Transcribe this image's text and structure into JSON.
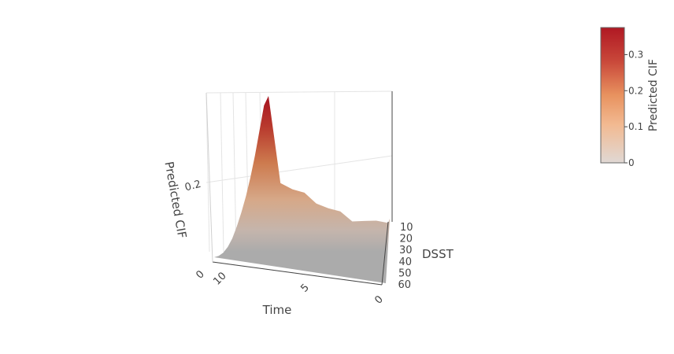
{
  "chart_data": {
    "type": "surface",
    "title": "",
    "axes": {
      "x": {
        "label": "Time",
        "ticks": [
          0,
          5,
          10
        ],
        "range": [
          0,
          12
        ]
      },
      "y": {
        "label": "DSST",
        "ticks": [
          10,
          20,
          30,
          40,
          50,
          60
        ],
        "range": [
          8,
          62
        ]
      },
      "z": {
        "label": "Predicted CIF",
        "ticks": [
          0.2
        ],
        "range": [
          0,
          0.38
        ]
      }
    },
    "surface_edges": {
      "cif_at_dsst_10": [
        {
          "time": 0,
          "cif": 0.0
        },
        {
          "time": 1,
          "cif": 0.004
        },
        {
          "time": 2,
          "cif": 0.012
        },
        {
          "time": 3,
          "cif": 0.026
        },
        {
          "time": 4,
          "cif": 0.046
        },
        {
          "time": 5,
          "cif": 0.074
        },
        {
          "time": 6,
          "cif": 0.106
        },
        {
          "time": 7,
          "cif": 0.143
        },
        {
          "time": 8,
          "cif": 0.186
        },
        {
          "time": 9,
          "cif": 0.236
        },
        {
          "time": 10,
          "cif": 0.292
        },
        {
          "time": 11,
          "cif": 0.35
        },
        {
          "time": 12,
          "cif": 0.372
        }
      ],
      "cif_at_time_12": [
        {
          "dsst": 10,
          "cif": 0.372
        },
        {
          "dsst": 15,
          "cif": 0.31
        },
        {
          "dsst": 20,
          "cif": 0.27
        },
        {
          "dsst": 25,
          "cif": 0.225
        },
        {
          "dsst": 30,
          "cif": 0.18
        },
        {
          "dsst": 35,
          "cif": 0.14
        },
        {
          "dsst": 40,
          "cif": 0.1
        },
        {
          "dsst": 45,
          "cif": 0.06
        },
        {
          "dsst": 50,
          "cif": 0.035
        },
        {
          "dsst": 55,
          "cif": 0.015
        },
        {
          "dsst": 60,
          "cif": 0.005
        }
      ]
    },
    "colorscale": [
      "#a9a9a9",
      "#e6d6cc",
      "#f2ad7c",
      "#d9704c",
      "#b81c25"
    ],
    "colorbar": {
      "title": "Predicted CIF",
      "ticks": [
        0,
        0.1,
        0.2,
        0.3
      ],
      "range": [
        0,
        0.375
      ],
      "position": "top-right"
    }
  }
}
